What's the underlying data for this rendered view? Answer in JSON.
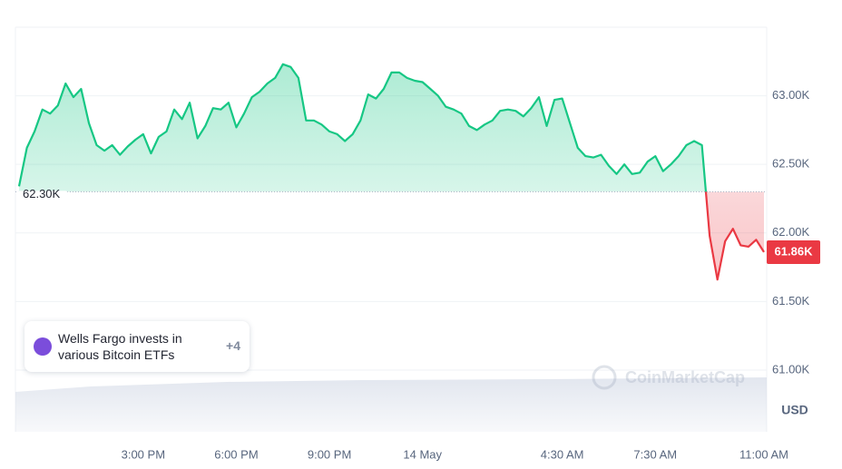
{
  "chart_data": {
    "type": "line",
    "categories": [
      null,
      null,
      null,
      null,
      null,
      null,
      null,
      null,
      null,
      null,
      null,
      null,
      null,
      null,
      null,
      null,
      "3:00 PM",
      null,
      null,
      null,
      null,
      null,
      null,
      null,
      null,
      null,
      null,
      null,
      "6:00 PM",
      null,
      null,
      null,
      null,
      null,
      null,
      null,
      null,
      null,
      null,
      null,
      "9:00 PM",
      null,
      null,
      null,
      null,
      null,
      null,
      null,
      null,
      null,
      null,
      null,
      "14 May",
      null,
      null,
      null,
      null,
      null,
      null,
      null,
      null,
      null,
      null,
      null,
      null,
      null,
      null,
      null,
      null,
      null,
      "4:30 AM",
      null,
      null,
      null,
      null,
      null,
      null,
      null,
      null,
      null,
      null,
      null,
      "7:30 AM",
      null,
      null,
      null,
      null,
      null,
      null,
      null,
      null,
      null,
      null,
      null,
      null,
      null,
      "11:00 AM"
    ],
    "values": [
      62340,
      62620,
      62740,
      62900,
      62870,
      62930,
      63090,
      62990,
      63050,
      62800,
      62640,
      62600,
      62640,
      62570,
      62630,
      62680,
      62720,
      62580,
      62700,
      62740,
      62900,
      62830,
      62950,
      62690,
      62780,
      62910,
      62900,
      62950,
      62770,
      62870,
      62990,
      63030,
      63090,
      63130,
      63230,
      63210,
      63130,
      62820,
      62820,
      62790,
      62740,
      62720,
      62670,
      62720,
      62820,
      63010,
      62980,
      63050,
      63170,
      63170,
      63130,
      63110,
      63100,
      63050,
      63000,
      62920,
      62900,
      62870,
      62780,
      62750,
      62790,
      62820,
      62890,
      62900,
      62890,
      62850,
      62910,
      62990,
      62780,
      62970,
      62980,
      62800,
      62620,
      62560,
      62550,
      62570,
      62490,
      62430,
      62500,
      62430,
      62440,
      62520,
      62560,
      62450,
      62500,
      62560,
      62640,
      62670,
      62640,
      61980,
      61660,
      61940,
      62030,
      61910,
      61900,
      61950,
      61860
    ],
    "value_labels": [
      null,
      null,
      null,
      null,
      null,
      null,
      null,
      null,
      null,
      null,
      null,
      null,
      null,
      null,
      null,
      null,
      null,
      null,
      null,
      null,
      null,
      null,
      null,
      null,
      null,
      null,
      null,
      null,
      null,
      null,
      null,
      null,
      null,
      null,
      null,
      null,
      null,
      null,
      null,
      null,
      null,
      null,
      null,
      null,
      null,
      null,
      null,
      null,
      null,
      null,
      null,
      null,
      null,
      null,
      null,
      null,
      null,
      null,
      null,
      null,
      null,
      null,
      null,
      null,
      null,
      null,
      null,
      null,
      null,
      null,
      null,
      null,
      null,
      null,
      null,
      null,
      null,
      null,
      null,
      null,
      null,
      null,
      null,
      null,
      null,
      null,
      null,
      null,
      null,
      null,
      null,
      null,
      null,
      null,
      null,
      null,
      "61.86K"
    ],
    "color_up": "#16c784",
    "color_down": "#ea3943",
    "baseline": {
      "value": 62300,
      "label": "62.30K"
    },
    "ylim": [
      60550,
      63500
    ],
    "yticks": [
      {
        "value": 61000,
        "label": "61.00K"
      },
      {
        "value": 61500,
        "label": "61.50K"
      },
      {
        "value": 62000,
        "label": "62.00K"
      },
      {
        "value": 62500,
        "label": "62.50K"
      },
      {
        "value": 63000,
        "label": "63.00K"
      }
    ],
    "y_axis_label": "USD",
    "grid": true,
    "annotation": {
      "text": "Wells Fargo invests in various Bitcoin ETFs",
      "count": "+4"
    },
    "watermark": "CoinMarketCap"
  }
}
